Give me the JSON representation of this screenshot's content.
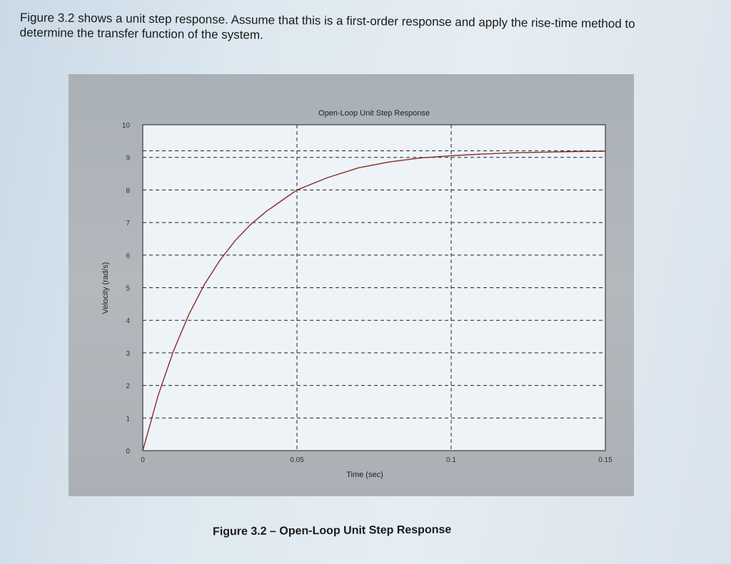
{
  "question": {
    "text": "Figure 3.2 shows a unit step response. Assume that this is a first-order response and apply the rise-time method to determine the transfer function of the system."
  },
  "figure": {
    "caption": "Figure 3.2 – Open-Loop Unit Step Response"
  },
  "colors": {
    "curve": "#8a2a2a",
    "grid": "#222222",
    "plot_bg": "#eef3f7",
    "frame_bg": "#adb3b8"
  },
  "chart_data": {
    "type": "line",
    "title": "Open-Loop Unit Step Response",
    "xlabel": "Time (sec)",
    "ylabel": "Velocity (rad/s)",
    "xlim": [
      0,
      0.15
    ],
    "ylim": [
      0,
      10
    ],
    "x_ticks": [
      0,
      0.05,
      0.1,
      0.15
    ],
    "x_tick_labels": [
      "0",
      "0.05",
      "0.1",
      "0.15"
    ],
    "y_ticks": [
      0,
      1,
      2,
      3,
      4,
      5,
      6,
      7,
      8,
      9,
      10
    ],
    "y_tick_labels": [
      "0",
      "1",
      "2",
      "3",
      "4",
      "5",
      "6",
      "7",
      "8",
      "9",
      "10"
    ],
    "grid": true,
    "extra_reference_line_y": 9.2,
    "series": [
      {
        "name": "Velocity",
        "x": [
          0,
          0.005,
          0.01,
          0.015,
          0.02,
          0.025,
          0.03,
          0.035,
          0.04,
          0.045,
          0.05,
          0.06,
          0.07,
          0.08,
          0.09,
          0.1,
          0.11,
          0.12,
          0.13,
          0.14,
          0.15
        ],
        "values": [
          0,
          1.7,
          3.07,
          4.19,
          5.1,
          5.84,
          6.45,
          6.94,
          7.34,
          7.67,
          8.0,
          8.38,
          8.68,
          8.86,
          8.98,
          9.05,
          9.1,
          9.14,
          9.16,
          9.18,
          9.19
        ]
      }
    ]
  }
}
